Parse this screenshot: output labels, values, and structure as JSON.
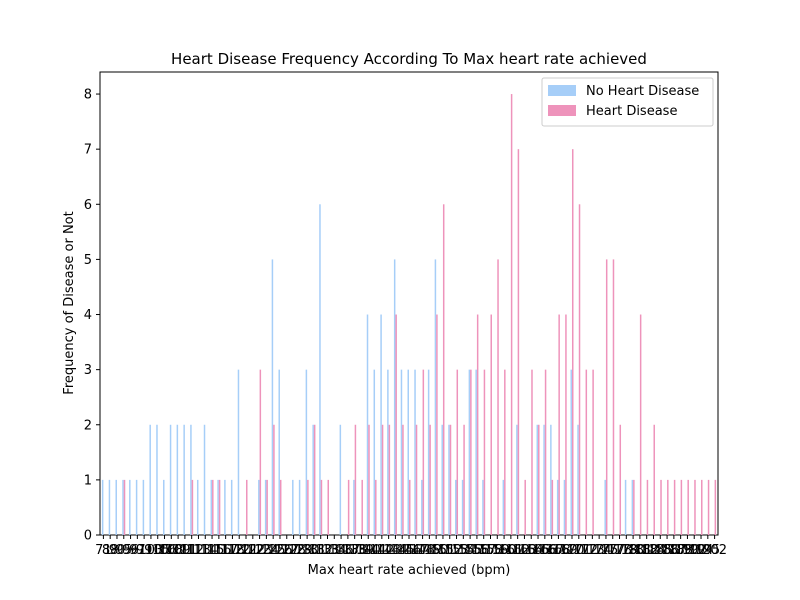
{
  "chart_data": {
    "type": "bar",
    "title": "Heart Disease Frequency According To Max heart rate achieved",
    "xlabel": "Max heart rate achieved (bpm)",
    "ylabel": "Frequency of Disease or Not",
    "ylim": [
      0,
      8.4
    ],
    "yticks": [
      0,
      1,
      2,
      3,
      4,
      5,
      6,
      7,
      8
    ],
    "legend_position": "top-right",
    "grid": false,
    "categories": [
      "71",
      "88",
      "90",
      "95",
      "96",
      "97",
      "99",
      "103",
      "105",
      "106",
      "108",
      "109",
      "111",
      "112",
      "113",
      "114",
      "115",
      "116",
      "117",
      "118",
      "120",
      "121",
      "122",
      "123",
      "124",
      "125",
      "126",
      "127",
      "128",
      "129",
      "130",
      "131",
      "132",
      "133",
      "134",
      "136",
      "137",
      "138",
      "139",
      "140",
      "141",
      "142",
      "143",
      "144",
      "145",
      "146",
      "147",
      "148",
      "149",
      "150",
      "151",
      "152",
      "153",
      "154",
      "155",
      "156",
      "157",
      "158",
      "159",
      "160",
      "161",
      "162",
      "163",
      "164",
      "165",
      "166",
      "167",
      "168",
      "169",
      "170",
      "171",
      "172",
      "173",
      "174",
      "175",
      "177",
      "178",
      "179",
      "180",
      "181",
      "182",
      "184",
      "185",
      "186",
      "187",
      "188",
      "190",
      "192",
      "194",
      "195",
      "202"
    ],
    "series": [
      {
        "name": "No Heart Disease",
        "color": "#a6cef8",
        "values": [
          1,
          1,
          1,
          1,
          1,
          1,
          1,
          2,
          2,
          1,
          2,
          2,
          2,
          2,
          1,
          2,
          1,
          1,
          1,
          1,
          3,
          0,
          0,
          1,
          1,
          5,
          3,
          0,
          1,
          1,
          3,
          2,
          6,
          0,
          0,
          2,
          0,
          1,
          0,
          4,
          3,
          4,
          3,
          5,
          3,
          3,
          3,
          1,
          3,
          5,
          2,
          2,
          1,
          1,
          3,
          3,
          1,
          0,
          0,
          1,
          0,
          2,
          0,
          0,
          2,
          2,
          2,
          1,
          1,
          3,
          2,
          0,
          0,
          0,
          1,
          0,
          0,
          1,
          1,
          0,
          0,
          0,
          0,
          0,
          0,
          0,
          0,
          0,
          0,
          0,
          0
        ]
      },
      {
        "name": "Heart Disease",
        "color": "#ee93bb",
        "values": [
          0,
          0,
          0,
          1,
          0,
          0,
          0,
          0,
          0,
          0,
          0,
          0,
          0,
          1,
          0,
          0,
          1,
          1,
          0,
          0,
          0,
          1,
          0,
          3,
          1,
          2,
          1,
          0,
          0,
          0,
          1,
          2,
          1,
          1,
          0,
          0,
          1,
          2,
          1,
          2,
          1,
          2,
          2,
          4,
          2,
          1,
          2,
          3,
          2,
          4,
          6,
          2,
          3,
          2,
          3,
          4,
          3,
          4,
          5,
          3,
          8,
          7,
          1,
          3,
          2,
          3,
          1,
          4,
          4,
          7,
          6,
          3,
          3,
          0,
          5,
          5,
          2,
          0,
          1,
          4,
          1,
          2,
          1,
          1,
          1,
          1,
          1,
          1,
          1,
          1,
          1
        ]
      }
    ]
  }
}
